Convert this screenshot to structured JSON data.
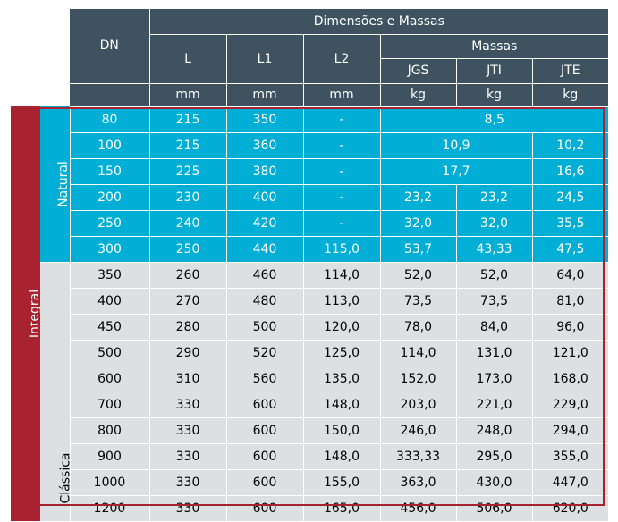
{
  "header": {
    "dn": "DN",
    "group": "Dimensões e Massas",
    "massas": "Massas",
    "cols": [
      "L",
      "L1",
      "L2"
    ],
    "mass_cols": [
      "JGS",
      "JTI",
      "JTE"
    ],
    "units": [
      "mm",
      "mm",
      "mm",
      "kg",
      "kg",
      "kg"
    ]
  },
  "groups": {
    "integral": "Integral",
    "natural": "Natural",
    "classica": "Clássica"
  },
  "natural_rows": [
    {
      "dn": "80",
      "l": "215",
      "l1": "350",
      "l2": "-",
      "merged_all": "8,5"
    },
    {
      "dn": "100",
      "l": "215",
      "l1": "360",
      "l2": "-",
      "merged_2": "10,9",
      "jte": "10,2"
    },
    {
      "dn": "150",
      "l": "225",
      "l1": "380",
      "l2": "-",
      "merged_2": "17,7",
      "jte": "16,6"
    },
    {
      "dn": "200",
      "l": "230",
      "l1": "400",
      "l2": "-",
      "jgs": "23,2",
      "jti": "23,2",
      "jte": "24,5"
    },
    {
      "dn": "250",
      "l": "240",
      "l1": "420",
      "l2": "-",
      "jgs": "32,0",
      "jti": "32,0",
      "jte": "35,5"
    },
    {
      "dn": "300",
      "l": "250",
      "l1": "440",
      "l2": "115,0",
      "jgs": "53,7",
      "jti": "43,33",
      "jte": "47,5"
    }
  ],
  "classica_rows": [
    {
      "dn": "350",
      "l": "260",
      "l1": "460",
      "l2": "114,0",
      "jgs": "52,0",
      "jti": "52,0",
      "jte": "64,0"
    },
    {
      "dn": "400",
      "l": "270",
      "l1": "480",
      "l2": "113,0",
      "jgs": "73,5",
      "jti": "73,5",
      "jte": "81,0"
    },
    {
      "dn": "450",
      "l": "280",
      "l1": "500",
      "l2": "120,0",
      "jgs": "78,0",
      "jti": "84,0",
      "jte": "96,0"
    },
    {
      "dn": "500",
      "l": "290",
      "l1": "520",
      "l2": "125,0",
      "jgs": "114,0",
      "jti": "131,0",
      "jte": "121,0"
    },
    {
      "dn": "600",
      "l": "310",
      "l1": "560",
      "l2": "135,0",
      "jgs": "152,0",
      "jti": "173,0",
      "jte": "168,0"
    },
    {
      "dn": "700",
      "l": "330",
      "l1": "600",
      "l2": "148,0",
      "jgs": "203,0",
      "jti": "221,0",
      "jte": "229,0"
    },
    {
      "dn": "800",
      "l": "330",
      "l1": "600",
      "l2": "150,0",
      "jgs": "246,0",
      "jti": "248,0",
      "jte": "294,0"
    },
    {
      "dn": "900",
      "l": "330",
      "l1": "600",
      "l2": "148,0",
      "jgs": "333,33",
      "jti": "295,0",
      "jte": "355,0"
    },
    {
      "dn": "1000",
      "l": "330",
      "l1": "600",
      "l2": "155,0",
      "jgs": "363,0",
      "jti": "430,0",
      "jte": "447,0"
    },
    {
      "dn": "1200",
      "l": "330",
      "l1": "600",
      "l2": "165,0",
      "jgs": "456,0",
      "jti": "506,0",
      "jte": "620,0"
    }
  ],
  "colors": {
    "header": "#3e535f",
    "natural": "#00aed6",
    "classica": "#dde0e3",
    "integral": "#a8232f"
  }
}
